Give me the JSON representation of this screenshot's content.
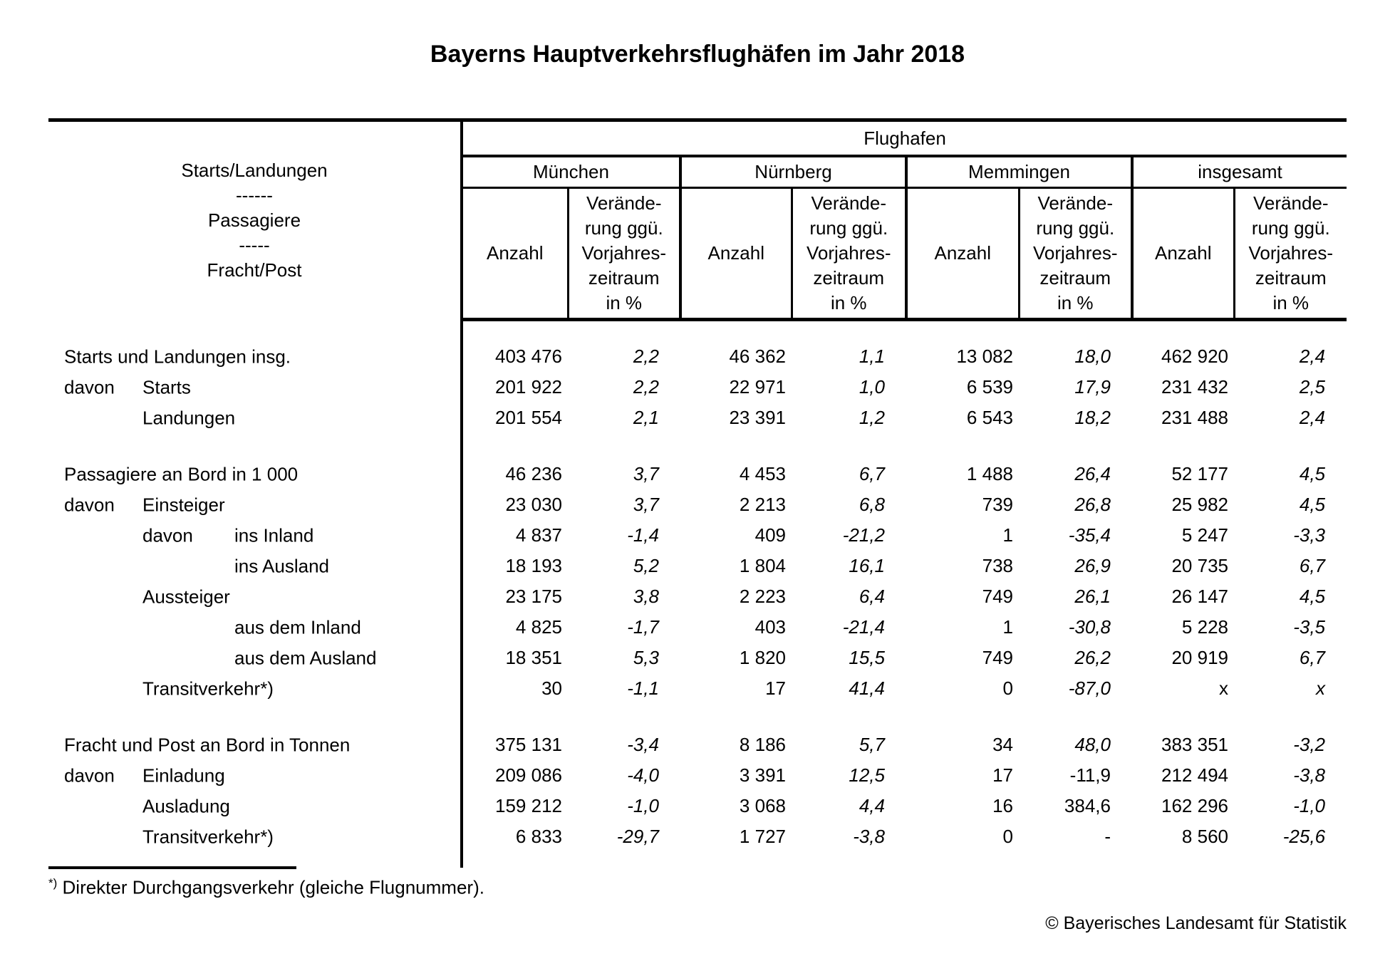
{
  "title": "Bayerns Hauptverkehrsflughäfen im Jahr 2018",
  "table": {
    "header": {
      "group_title": "Flughafen",
      "stub_lines": [
        "Starts/Landungen",
        "------",
        "Passagiere",
        "-----",
        "Fracht/Post"
      ],
      "airports": [
        "München",
        "Nürnberg",
        "Memmingen",
        "insgesamt"
      ],
      "anzahl_label": "Anzahl",
      "change_label": "Verände-\nrung ggü.\nVorjahres-\nzeitraum\nin %"
    },
    "sections": [
      {
        "rows": [
          {
            "bold": true,
            "label_parts": [
              {
                "text": "Starts und Landungen insg.",
                "level": 0
              }
            ],
            "cells": [
              {
                "v": "403 476"
              },
              {
                "v": "2,2",
                "i": true
              },
              {
                "v": "46 362"
              },
              {
                "v": "1,1",
                "i": true
              },
              {
                "v": "13 082"
              },
              {
                "v": "18,0",
                "i": true
              },
              {
                "v": "462 920"
              },
              {
                "v": "2,4",
                "i": true
              }
            ]
          },
          {
            "bold": false,
            "label_parts": [
              {
                "text": "davon",
                "level": 0
              },
              {
                "text": "Starts",
                "level": 1
              }
            ],
            "cells": [
              {
                "v": "201 922"
              },
              {
                "v": "2,2",
                "i": true
              },
              {
                "v": "22 971"
              },
              {
                "v": "1,0",
                "i": true
              },
              {
                "v": "6 539"
              },
              {
                "v": "17,9",
                "i": true
              },
              {
                "v": "231 432"
              },
              {
                "v": "2,5",
                "i": true
              }
            ]
          },
          {
            "bold": false,
            "label_parts": [
              {
                "text": "Landungen",
                "level": 1
              }
            ],
            "cells": [
              {
                "v": "201 554"
              },
              {
                "v": "2,1",
                "i": true
              },
              {
                "v": "23 391"
              },
              {
                "v": "1,2",
                "i": true
              },
              {
                "v": "6 543"
              },
              {
                "v": "18,2",
                "i": true
              },
              {
                "v": "231 488"
              },
              {
                "v": "2,4",
                "i": true
              }
            ]
          }
        ]
      },
      {
        "rows": [
          {
            "bold": true,
            "label_parts": [
              {
                "text": "Passagiere an Bord in 1 000",
                "level": 0
              }
            ],
            "cells": [
              {
                "v": "46 236"
              },
              {
                "v": "3,7",
                "i": true
              },
              {
                "v": "4 453"
              },
              {
                "v": "6,7",
                "i": true
              },
              {
                "v": "1 488"
              },
              {
                "v": "26,4",
                "i": true
              },
              {
                "v": "52 177"
              },
              {
                "v": "4,5",
                "i": true
              }
            ]
          },
          {
            "bold": false,
            "label_parts": [
              {
                "text": "davon",
                "level": 0
              },
              {
                "text": "Einsteiger",
                "level": 1
              }
            ],
            "cells": [
              {
                "v": "23 030"
              },
              {
                "v": "3,7",
                "i": true
              },
              {
                "v": "2 213"
              },
              {
                "v": "6,8",
                "i": true
              },
              {
                "v": "739"
              },
              {
                "v": "26,8",
                "i": true
              },
              {
                "v": "25 982"
              },
              {
                "v": "4,5",
                "i": true
              }
            ]
          },
          {
            "bold": false,
            "label_parts": [
              {
                "text": "davon",
                "level": 1
              },
              {
                "text": "ins Inland",
                "level": 2
              }
            ],
            "cells": [
              {
                "v": "4 837"
              },
              {
                "v": "-1,4",
                "i": true
              },
              {
                "v": "409"
              },
              {
                "v": "-21,2",
                "i": true
              },
              {
                "v": "1"
              },
              {
                "v": "-35,4",
                "i": true
              },
              {
                "v": "5 247"
              },
              {
                "v": "-3,3",
                "i": true
              }
            ]
          },
          {
            "bold": false,
            "label_parts": [
              {
                "text": "ins Ausland",
                "level": 2
              }
            ],
            "cells": [
              {
                "v": "18 193"
              },
              {
                "v": "5,2",
                "i": true
              },
              {
                "v": "1 804"
              },
              {
                "v": "16,1",
                "i": true
              },
              {
                "v": "738"
              },
              {
                "v": "26,9",
                "i": true
              },
              {
                "v": "20 735"
              },
              {
                "v": "6,7",
                "i": true
              }
            ]
          },
          {
            "bold": false,
            "label_parts": [
              {
                "text": "Aussteiger",
                "level": 1
              }
            ],
            "cells": [
              {
                "v": "23 175"
              },
              {
                "v": "3,8",
                "i": true
              },
              {
                "v": "2 223"
              },
              {
                "v": "6,4",
                "i": true
              },
              {
                "v": "749"
              },
              {
                "v": "26,1",
                "i": true
              },
              {
                "v": "26 147"
              },
              {
                "v": "4,5",
                "i": true
              }
            ]
          },
          {
            "bold": false,
            "label_parts": [
              {
                "text": "aus dem Inland",
                "level": 2
              }
            ],
            "cells": [
              {
                "v": "4 825"
              },
              {
                "v": "-1,7",
                "i": true
              },
              {
                "v": "403"
              },
              {
                "v": "-21,4",
                "i": true
              },
              {
                "v": "1"
              },
              {
                "v": "-30,8",
                "i": true
              },
              {
                "v": "5 228"
              },
              {
                "v": "-3,5",
                "i": true
              }
            ]
          },
          {
            "bold": false,
            "label_parts": [
              {
                "text": "aus dem Ausland",
                "level": 2
              }
            ],
            "cells": [
              {
                "v": "18 351"
              },
              {
                "v": "5,3",
                "i": true
              },
              {
                "v": "1 820"
              },
              {
                "v": "15,5",
                "i": true
              },
              {
                "v": "749"
              },
              {
                "v": "26,2",
                "i": true
              },
              {
                "v": "20 919"
              },
              {
                "v": "6,7",
                "i": true
              }
            ]
          },
          {
            "bold": false,
            "label_parts": [
              {
                "text": "Transitverkehr*)",
                "level": 1
              }
            ],
            "cells": [
              {
                "v": "30"
              },
              {
                "v": "-1,1",
                "i": true
              },
              {
                "v": "17"
              },
              {
                "v": "41,4",
                "i": true
              },
              {
                "v": "0"
              },
              {
                "v": "-87,0",
                "i": true
              },
              {
                "v": "x"
              },
              {
                "v": "x",
                "i": true
              }
            ]
          }
        ]
      },
      {
        "rows": [
          {
            "bold": true,
            "label_parts": [
              {
                "text": "Fracht und Post an Bord in Tonnen",
                "level": 0
              }
            ],
            "cells": [
              {
                "v": "375 131"
              },
              {
                "v": "-3,4",
                "i": true
              },
              {
                "v": "8 186"
              },
              {
                "v": "5,7",
                "i": true
              },
              {
                "v": "34"
              },
              {
                "v": "48,0",
                "i": true
              },
              {
                "v": "383 351"
              },
              {
                "v": "-3,2",
                "i": true
              }
            ]
          },
          {
            "bold": false,
            "label_parts": [
              {
                "text": "davon",
                "level": 0
              },
              {
                "text": "Einladung",
                "level": 1
              }
            ],
            "cells": [
              {
                "v": "209 086"
              },
              {
                "v": "-4,0",
                "i": true
              },
              {
                "v": "3 391"
              },
              {
                "v": "12,5",
                "i": true
              },
              {
                "v": "17"
              },
              {
                "v": "-11,9",
                "i": false
              },
              {
                "v": "212 494"
              },
              {
                "v": "-3,8",
                "i": true
              }
            ]
          },
          {
            "bold": false,
            "label_parts": [
              {
                "text": "Ausladung",
                "level": 1
              }
            ],
            "cells": [
              {
                "v": "159 212"
              },
              {
                "v": "-1,0",
                "i": true
              },
              {
                "v": "3 068"
              },
              {
                "v": "4,4",
                "i": true
              },
              {
                "v": "16"
              },
              {
                "v": "384,6",
                "i": false
              },
              {
                "v": "162 296"
              },
              {
                "v": "-1,0",
                "i": true
              }
            ]
          },
          {
            "bold": false,
            "label_parts": [
              {
                "text": "Transitverkehr*)",
                "level": 1
              }
            ],
            "cells": [
              {
                "v": "6 833"
              },
              {
                "v": "-29,7",
                "i": true
              },
              {
                "v": "1 727"
              },
              {
                "v": "-3,8",
                "i": true
              },
              {
                "v": "0"
              },
              {
                "v": "-",
                "i": false
              },
              {
                "v": "8 560"
              },
              {
                "v": "-25,6",
                "i": true
              }
            ]
          }
        ]
      }
    ]
  },
  "footnote": {
    "marker": "*)",
    "text": "Direkter Durchgangsverkehr (gleiche Flugnummer)."
  },
  "copyright": "© Bayerisches Landesamt für Statistik"
}
